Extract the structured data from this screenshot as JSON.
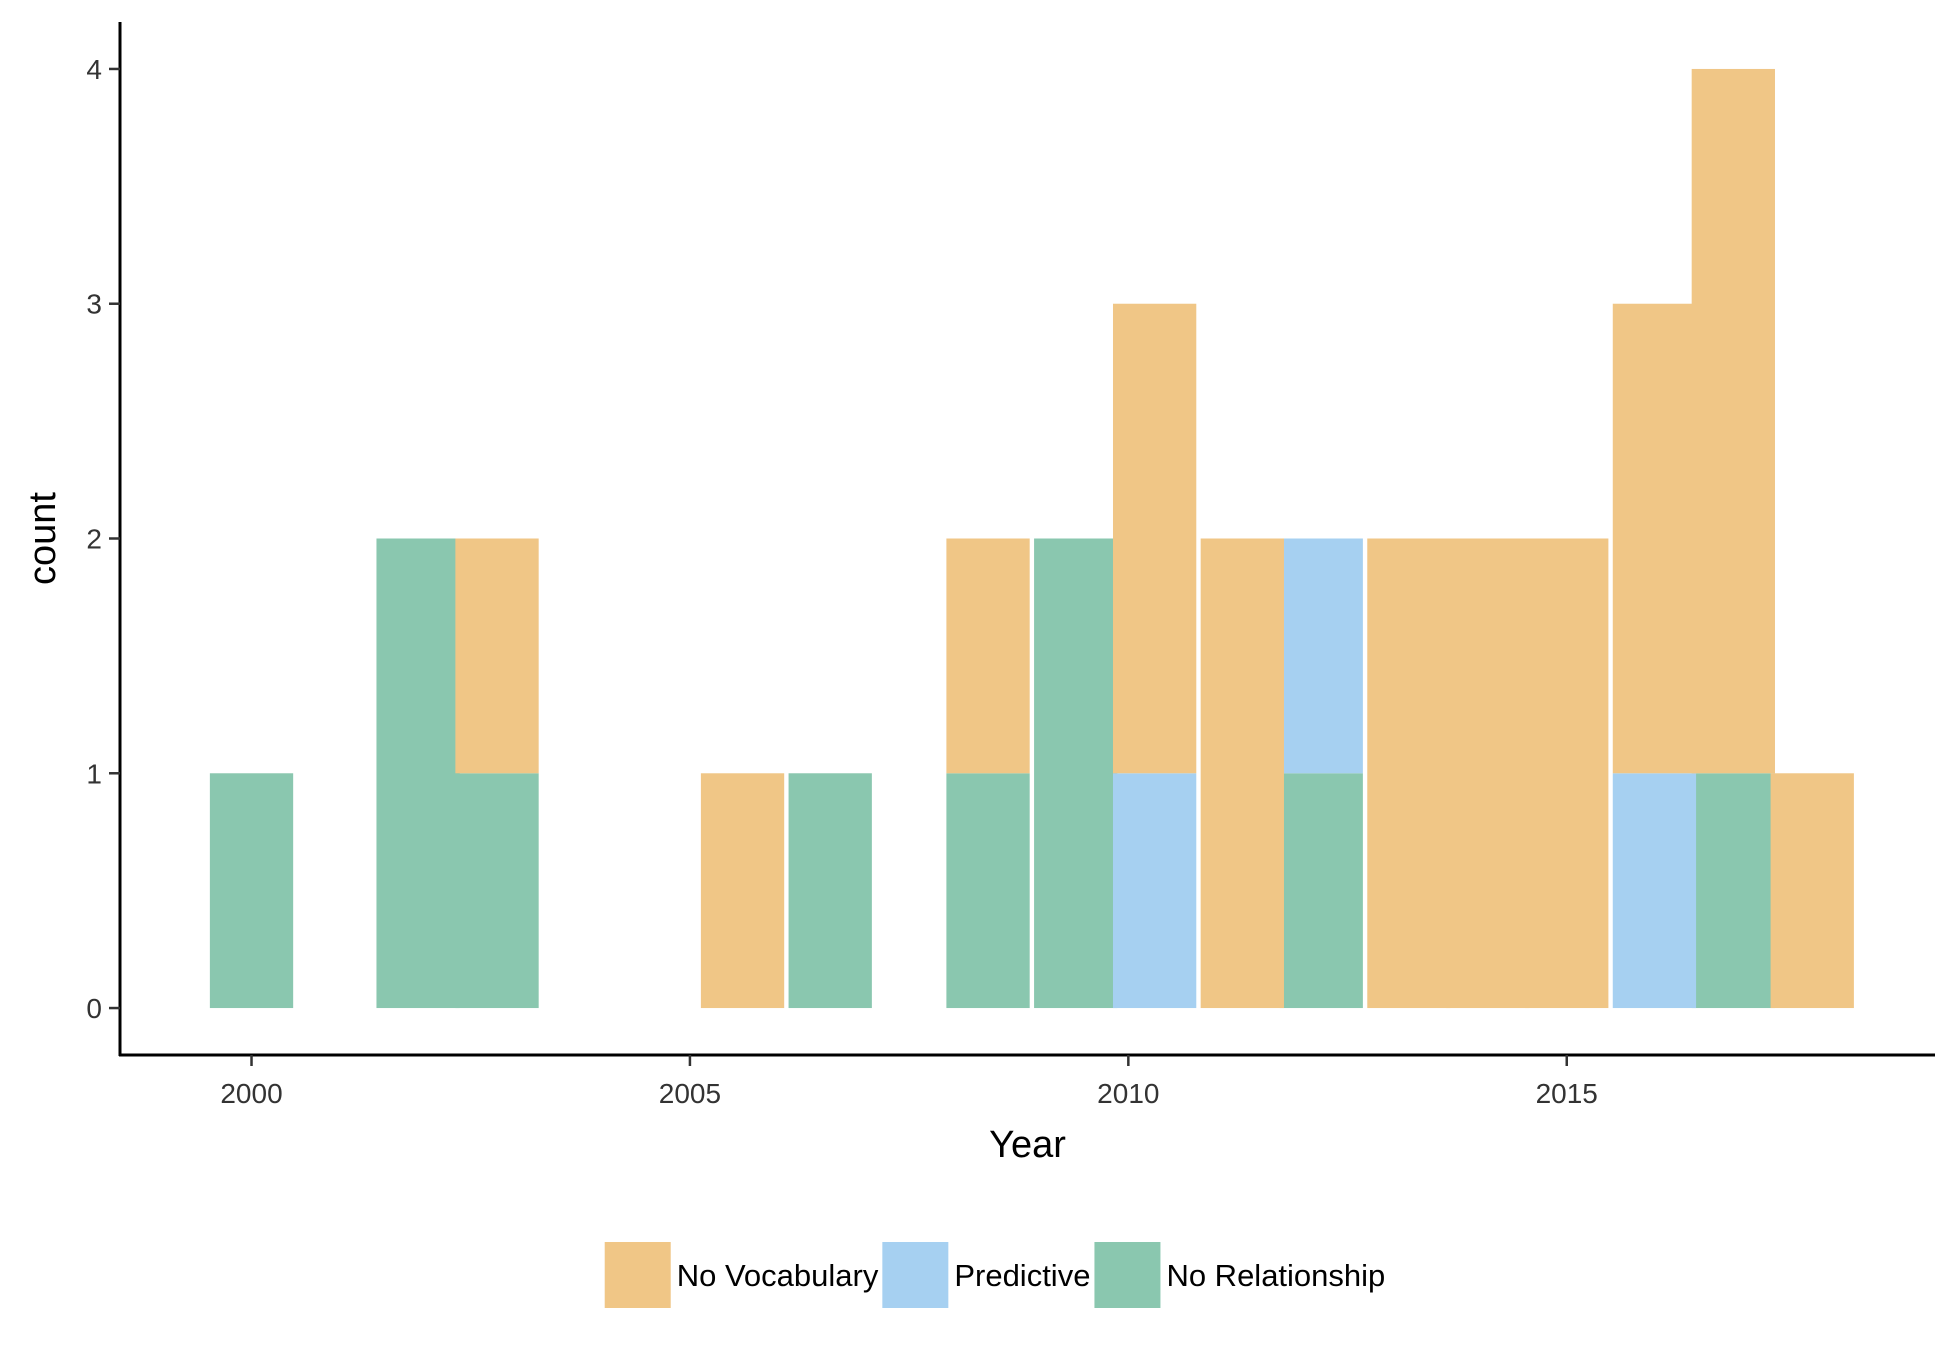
{
  "chart_data": {
    "type": "bar",
    "stacked": true,
    "title": "",
    "xlabel": "Year",
    "ylabel": "count",
    "x_ticks": [
      2000,
      2005,
      2010,
      2015
    ],
    "y_ticks": [
      0,
      1,
      2,
      3,
      4
    ],
    "xlim": [
      1998.5,
      2019.2
    ],
    "ylim": [
      -0.2,
      4.2
    ],
    "bin_width": 0.95,
    "grid": false,
    "legend_position": "bottom",
    "series": [
      {
        "name": "No Relationship",
        "color": "#8AC7AF",
        "points": [
          {
            "x": 2000.0,
            "y": 1
          },
          {
            "x": 2001.9,
            "y": 2
          },
          {
            "x": 2002.8,
            "y": 1
          },
          {
            "x": 2006.6,
            "y": 1
          },
          {
            "x": 2008.4,
            "y": 1
          },
          {
            "x": 2009.4,
            "y": 2
          },
          {
            "x": 2012.2,
            "y": 1
          },
          {
            "x": 2016.9,
            "y": 1
          }
        ]
      },
      {
        "name": "Predictive",
        "color": "#A6D0F1",
        "points": [
          {
            "x": 2010.3,
            "y": 1
          },
          {
            "x": 2012.2,
            "y": 1
          },
          {
            "x": 2016.0,
            "y": 1
          }
        ]
      },
      {
        "name": "No Vocabulary",
        "color": "#F0C686",
        "points": [
          {
            "x": 2002.8,
            "y": 1
          },
          {
            "x": 2005.6,
            "y": 1
          },
          {
            "x": 2008.4,
            "y": 1
          },
          {
            "x": 2010.3,
            "y": 2
          },
          {
            "x": 2011.3,
            "y": 2
          },
          {
            "x": 2013.2,
            "y": 2
          },
          {
            "x": 2014.1,
            "y": 2
          },
          {
            "x": 2015.0,
            "y": 2
          },
          {
            "x": 2016.0,
            "y": 2
          },
          {
            "x": 2016.9,
            "y": 3
          },
          {
            "x": 2017.8,
            "y": 1
          }
        ]
      }
    ],
    "legend": [
      {
        "name": "No Vocabulary",
        "color": "#F0C686"
      },
      {
        "name": "Predictive",
        "color": "#A6D0F1"
      },
      {
        "name": "No Relationship",
        "color": "#8AC7AF"
      }
    ]
  }
}
